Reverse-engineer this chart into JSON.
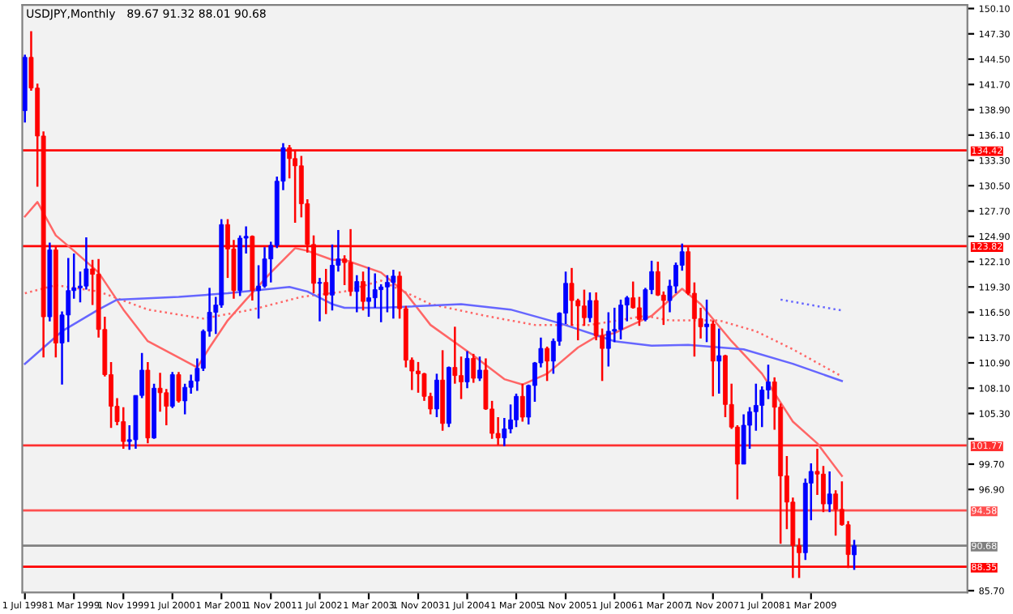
{
  "chart_data": {
    "type": "candlestick",
    "title": "USDJPY,Monthly",
    "subtitle": "89.67 91.32 88.01 90.68",
    "colors": [
      "#0000ff",
      "#ff0000",
      "#ff0000",
      "#ff0000",
      "#0000ff",
      "#ff0000",
      "#0000ff",
      "#0000ff",
      "#0000ff",
      "#0000ff",
      "#0000ff",
      "#ff0000",
      "#ff0000",
      "#ff0000",
      "#ff0000",
      "#ff0000",
      "#ff0000",
      "#0000ff",
      "#0000ff",
      "#0000ff",
      "#ff0000",
      "#0000ff",
      "#ff0000",
      "#ff0000",
      "#0000ff",
      "#ff0000",
      "#0000ff",
      "#0000ff",
      "#0000ff",
      "#0000ff",
      "#0000ff",
      "#0000ff",
      "#0000ff",
      "#ff0000",
      "#ff0000",
      "#0000ff",
      "#0000ff",
      "#ff0000",
      "#0000ff",
      "#0000ff",
      "#0000ff",
      "#0000ff",
      "#0000ff",
      "#ff0000",
      "#ff0000",
      "#ff0000",
      "#ff0000",
      "#ff0000",
      "#0000ff",
      "#ff0000",
      "#0000ff",
      "#0000ff",
      "#ff0000",
      "#ff0000",
      "#0000ff",
      "#ff0000",
      "#0000ff",
      "#0000ff",
      "#0000ff",
      "#0000ff",
      "#0000ff",
      "#ff0000",
      "#ff0000",
      "#ff0000",
      "#ff0000",
      "#ff0000",
      "#ff0000",
      "#0000ff",
      "#ff0000",
      "#0000ff",
      "#ff0000",
      "#ff0000",
      "#0000ff",
      "#ff0000",
      "#0000ff",
      "#ff0000",
      "#ff0000",
      "#ff0000",
      "#0000ff",
      "#0000ff",
      "#0000ff",
      "#ff0000",
      "#0000ff",
      "#0000ff",
      "#0000ff",
      "#ff0000",
      "#0000ff",
      "#0000ff",
      "#0000ff",
      "#ff0000",
      "#ff0000",
      "#ff0000",
      "#0000ff",
      "#ff0000",
      "#ff0000",
      "#0000ff",
      "#0000ff",
      "#0000ff",
      "#0000ff",
      "#ff0000",
      "#ff0000",
      "#0000ff",
      "#0000ff",
      "#ff0000",
      "#ff0000",
      "#0000ff",
      "#0000ff",
      "#0000ff",
      "#ff0000",
      "#ff0000",
      "#ff0000",
      "#0000ff",
      "#ff0000",
      "#0000ff",
      "#ff0000",
      "#ff0000",
      "#ff0000",
      "#0000ff",
      "#0000ff",
      "#0000ff",
      "#0000ff",
      "#0000ff",
      "#ff0000",
      "#ff0000",
      "#ff0000",
      "#ff0000",
      "#ff0000",
      "#0000ff",
      "#0000ff",
      "#ff0000",
      "#ff0000",
      "#0000ff",
      "#ff0000",
      "#ff0000",
      "#ff0000",
      "#0000ff"
    ],
    "x": [
      "1998-07",
      "1998-08",
      "1998-09",
      "1998-10",
      "1998-11",
      "1998-12",
      "1999-01",
      "1999-02",
      "1999-03",
      "1999-04",
      "1999-05",
      "1999-06",
      "1999-07",
      "1999-08",
      "1999-09",
      "1999-10",
      "1999-11",
      "1999-12",
      "2000-01",
      "2000-02",
      "2000-03",
      "2000-04",
      "2000-05",
      "2000-06",
      "2000-07",
      "2000-08",
      "2000-09",
      "2000-10",
      "2000-11",
      "2000-12",
      "2001-01",
      "2001-02",
      "2001-03",
      "2001-04",
      "2001-05",
      "2001-06",
      "2001-07",
      "2001-08",
      "2001-09",
      "2001-10",
      "2001-11",
      "2001-12",
      "2002-01",
      "2002-02",
      "2002-03",
      "2002-04",
      "2002-05",
      "2002-06",
      "2002-07",
      "2002-08",
      "2002-09",
      "2002-10",
      "2002-11",
      "2002-12",
      "2003-01",
      "2003-02",
      "2003-03",
      "2003-04",
      "2003-05",
      "2003-06",
      "2003-07",
      "2003-08",
      "2003-09",
      "2003-10",
      "2003-11",
      "2003-12",
      "2004-01",
      "2004-02",
      "2004-03",
      "2004-04",
      "2004-05",
      "2004-06",
      "2004-07",
      "2004-08",
      "2004-09",
      "2004-10",
      "2004-11",
      "2004-12",
      "2005-01",
      "2005-02",
      "2005-03",
      "2005-04",
      "2005-05",
      "2005-06",
      "2005-07",
      "2005-08",
      "2005-09",
      "2005-10",
      "2005-11",
      "2005-12",
      "2006-01",
      "2006-02",
      "2006-03",
      "2006-04",
      "2006-05",
      "2006-06",
      "2006-07",
      "2006-08",
      "2006-09",
      "2006-10",
      "2006-11",
      "2006-12",
      "2007-01",
      "2007-02",
      "2007-03",
      "2007-04",
      "2007-05",
      "2007-06",
      "2007-07",
      "2007-08",
      "2007-09",
      "2007-10",
      "2007-11",
      "2007-12",
      "2008-01",
      "2008-02",
      "2008-03",
      "2008-04",
      "2008-05",
      "2008-06",
      "2008-07",
      "2008-08",
      "2008-09",
      "2008-10",
      "2008-11",
      "2008-12",
      "2009-01",
      "2009-02",
      "2009-03",
      "2009-04",
      "2009-05",
      "2009-06",
      "2009-07",
      "2009-08",
      "2009-09",
      "2009-10"
    ],
    "ohlc": [
      [
        138.8,
        145.0,
        137.5,
        144.7
      ],
      [
        144.7,
        147.6,
        141.0,
        141.3
      ],
      [
        141.3,
        141.8,
        130.4,
        136.0
      ],
      [
        136.0,
        136.5,
        111.5,
        116.0
      ],
      [
        116.0,
        124.2,
        115.5,
        123.4
      ],
      [
        123.4,
        123.9,
        111.5,
        113.1
      ],
      [
        113.1,
        116.6,
        108.5,
        116.2
      ],
      [
        116.2,
        122.5,
        113.2,
        118.9
      ],
      [
        118.9,
        123.0,
        118.0,
        119.2
      ],
      [
        119.2,
        121.0,
        117.6,
        119.4
      ],
      [
        119.4,
        124.8,
        119.0,
        121.3
      ],
      [
        121.3,
        122.3,
        117.3,
        120.7
      ],
      [
        120.7,
        122.4,
        113.7,
        114.6
      ],
      [
        114.6,
        116.0,
        109.4,
        109.6
      ],
      [
        109.6,
        111.0,
        103.7,
        106.1
      ],
      [
        106.1,
        107.0,
        104.0,
        104.4
      ],
      [
        104.4,
        106.0,
        101.4,
        102.2
      ],
      [
        102.2,
        104.0,
        101.3,
        102.4
      ],
      [
        102.4,
        107.3,
        101.4,
        107.3
      ],
      [
        107.3,
        112.0,
        107.0,
        110.1
      ],
      [
        110.1,
        111.0,
        102.0,
        102.6
      ],
      [
        102.6,
        108.6,
        102.5,
        108.1
      ],
      [
        108.1,
        109.8,
        105.5,
        107.6
      ],
      [
        107.6,
        108.0,
        104.0,
        106.1
      ],
      [
        106.1,
        109.9,
        105.9,
        109.6
      ],
      [
        109.6,
        109.9,
        106.5,
        106.7
      ],
      [
        106.7,
        108.6,
        105.2,
        108.2
      ],
      [
        108.2,
        109.6,
        107.5,
        108.9
      ],
      [
        108.9,
        111.4,
        107.8,
        110.3
      ],
      [
        110.3,
        114.6,
        110.0,
        114.4
      ],
      [
        114.4,
        119.2,
        113.8,
        116.5
      ],
      [
        116.5,
        118.2,
        114.1,
        117.3
      ],
      [
        117.3,
        126.8,
        117.0,
        126.2
      ],
      [
        126.2,
        126.8,
        120.3,
        123.5
      ],
      [
        123.5,
        124.5,
        118.0,
        118.9
      ],
      [
        118.9,
        125.0,
        118.3,
        124.7
      ],
      [
        124.7,
        126.0,
        123.0,
        124.9
      ],
      [
        124.9,
        125.0,
        117.8,
        118.9
      ],
      [
        118.9,
        121.7,
        115.8,
        119.4
      ],
      [
        119.4,
        123.7,
        119.2,
        122.4
      ],
      [
        122.4,
        124.3,
        119.8,
        123.9
      ],
      [
        123.9,
        131.5,
        123.6,
        131.0
      ],
      [
        131.0,
        135.2,
        130.0,
        134.7
      ],
      [
        134.7,
        135.0,
        131.3,
        133.5
      ],
      [
        133.5,
        134.3,
        126.4,
        132.7
      ],
      [
        132.7,
        133.8,
        127.0,
        128.5
      ],
      [
        128.5,
        129.0,
        123.1,
        124.0
      ],
      [
        124.0,
        125.0,
        118.6,
        119.7
      ],
      [
        119.7,
        120.3,
        115.5,
        119.8
      ],
      [
        119.8,
        121.3,
        116.3,
        118.4
      ],
      [
        118.4,
        124.0,
        116.7,
        121.7
      ],
      [
        121.7,
        125.6,
        121.0,
        122.4
      ],
      [
        122.4,
        122.8,
        119.5,
        122.0
      ],
      [
        122.0,
        125.7,
        118.3,
        118.8
      ],
      [
        118.8,
        120.6,
        116.5,
        119.9
      ],
      [
        119.9,
        121.0,
        116.7,
        117.7
      ],
      [
        117.7,
        121.5,
        116.0,
        118.1
      ],
      [
        118.1,
        120.8,
        117.0,
        119.0
      ],
      [
        119.0,
        119.6,
        115.4,
        119.3
      ],
      [
        119.3,
        120.6,
        116.5,
        119.8
      ],
      [
        119.8,
        121.2,
        115.8,
        120.5
      ],
      [
        120.5,
        121.0,
        115.8,
        116.9
      ],
      [
        116.9,
        117.2,
        110.4,
        111.2
      ],
      [
        111.2,
        111.5,
        107.9,
        110.0
      ],
      [
        110.0,
        111.0,
        107.6,
        109.7
      ],
      [
        109.7,
        109.8,
        106.7,
        107.2
      ],
      [
        107.2,
        107.6,
        105.2,
        105.8
      ],
      [
        105.8,
        109.7,
        104.9,
        109.0
      ],
      [
        109.0,
        112.3,
        103.4,
        104.2
      ],
      [
        104.2,
        110.5,
        103.8,
        110.4
      ],
      [
        110.4,
        114.9,
        108.6,
        109.5
      ],
      [
        109.5,
        111.6,
        106.9,
        108.8
      ],
      [
        108.8,
        112.2,
        108.1,
        111.4
      ],
      [
        111.4,
        111.9,
        108.7,
        109.2
      ],
      [
        109.2,
        111.6,
        108.9,
        110.1
      ],
      [
        110.1,
        111.4,
        105.7,
        105.8
      ],
      [
        105.8,
        106.7,
        102.5,
        103.1
      ],
      [
        103.1,
        104.9,
        101.8,
        102.6
      ],
      [
        102.6,
        104.8,
        101.7,
        103.6
      ],
      [
        103.6,
        106.3,
        103.1,
        104.6
      ],
      [
        104.6,
        107.5,
        103.8,
        107.2
      ],
      [
        107.2,
        108.6,
        104.4,
        104.9
      ],
      [
        104.9,
        108.5,
        104.1,
        108.4
      ],
      [
        108.4,
        111.0,
        106.6,
        110.9
      ],
      [
        110.9,
        113.7,
        110.4,
        112.5
      ],
      [
        112.5,
        112.7,
        108.9,
        111.1
      ],
      [
        111.1,
        113.6,
        109.7,
        113.3
      ],
      [
        113.3,
        116.5,
        112.8,
        116.4
      ],
      [
        116.4,
        121.0,
        115.2,
        119.7
      ],
      [
        119.7,
        121.4,
        115.0,
        117.8
      ],
      [
        117.8,
        118.0,
        113.4,
        117.2
      ],
      [
        117.2,
        119.0,
        115.0,
        115.9
      ],
      [
        115.9,
        118.7,
        115.4,
        117.8
      ],
      [
        117.8,
        118.7,
        113.4,
        113.9
      ],
      [
        113.9,
        114.7,
        108.9,
        112.5
      ],
      [
        112.5,
        116.5,
        110.5,
        114.4
      ],
      [
        114.4,
        117.0,
        113.2,
        114.6
      ],
      [
        114.6,
        117.9,
        113.5,
        117.3
      ],
      [
        117.3,
        118.3,
        115.5,
        118.1
      ],
      [
        118.1,
        119.9,
        116.9,
        117.0
      ],
      [
        117.0,
        118.2,
        115.0,
        115.7
      ],
      [
        115.7,
        119.2,
        115.5,
        119.0
      ],
      [
        119.0,
        122.2,
        118.5,
        121.0
      ],
      [
        121.0,
        122.1,
        118.3,
        118.4
      ],
      [
        118.4,
        118.8,
        115.1,
        117.8
      ],
      [
        117.8,
        120.1,
        116.5,
        119.4
      ],
      [
        119.4,
        122.0,
        118.6,
        121.7
      ],
      [
        121.7,
        124.1,
        121.1,
        123.2
      ],
      [
        123.2,
        123.7,
        118.4,
        118.6
      ],
      [
        118.6,
        119.8,
        111.6,
        115.8
      ],
      [
        115.8,
        117.0,
        113.6,
        114.9
      ],
      [
        114.9,
        117.9,
        113.2,
        115.2
      ],
      [
        115.2,
        115.6,
        107.2,
        111.1
      ],
      [
        111.1,
        114.7,
        107.5,
        111.7
      ],
      [
        111.7,
        111.8,
        104.9,
        106.3
      ],
      [
        106.3,
        108.6,
        103.6,
        103.8
      ],
      [
        103.8,
        104.0,
        95.8,
        99.7
      ],
      [
        99.7,
        105.2,
        99.7,
        104.0
      ],
      [
        104.0,
        106.0,
        101.4,
        105.5
      ],
      [
        105.5,
        108.6,
        103.4,
        106.2
      ],
      [
        106.2,
        108.3,
        103.8,
        107.9
      ],
      [
        107.9,
        110.7,
        106.9,
        108.8
      ],
      [
        108.8,
        109.3,
        103.5,
        106.0
      ],
      [
        106.0,
        106.4,
        90.9,
        98.4
      ],
      [
        98.4,
        100.6,
        92.5,
        95.5
      ],
      [
        95.5,
        96.0,
        87.1,
        90.7
      ],
      [
        90.7,
        91.5,
        87.1,
        89.9
      ],
      [
        89.9,
        98.1,
        89.1,
        97.6
      ],
      [
        97.6,
        99.8,
        93.5,
        98.9
      ],
      [
        98.9,
        101.4,
        96.3,
        98.6
      ],
      [
        98.6,
        99.5,
        94.4,
        95.3
      ],
      [
        95.3,
        98.9,
        94.4,
        96.4
      ],
      [
        96.4,
        96.8,
        91.8,
        94.7
      ],
      [
        94.7,
        97.8,
        92.9,
        93.0
      ],
      [
        93.0,
        93.4,
        88.2,
        89.7
      ],
      [
        89.67,
        91.32,
        88.01,
        90.68
      ]
    ],
    "series": [
      {
        "type": "line",
        "color": "#ff6666",
        "line_style": "solid",
        "x": [
          "1998-07",
          "1998-09",
          "1998-12",
          "1999-03",
          "1999-07",
          "1999-11",
          "2000-03",
          "2000-08",
          "2000-11",
          "2001-01",
          "2001-04",
          "2001-07",
          "2001-11",
          "2002-03",
          "2002-05",
          "2002-09",
          "2002-11",
          "2003-05",
          "2003-09",
          "2004-01",
          "2004-08",
          "2005-01",
          "2005-04",
          "2005-08",
          "2006-01",
          "2006-04",
          "2006-07",
          "2007-01",
          "2007-06",
          "2007-09",
          "2008-02",
          "2008-07",
          "2008-12",
          "2009-04",
          "2009-08"
        ],
        "values": [
          127.1,
          128.7,
          125.0,
          123.3,
          120.9,
          116.8,
          113.3,
          111.5,
          110.4,
          112.6,
          115.6,
          117.9,
          120.9,
          123.6,
          123.3,
          122.3,
          122.3,
          120.9,
          118.6,
          115.1,
          111.7,
          109.1,
          108.5,
          109.7,
          112.6,
          113.8,
          114.2,
          116.1,
          119.1,
          117.4,
          113.3,
          109.7,
          104.4,
          102.0,
          98.4
        ]
      },
      {
        "type": "line",
        "color": "#ff6666",
        "line_style": "dotted",
        "x": [
          "1998-07",
          "1998-12",
          "1999-07",
          "2000-03",
          "2000-12",
          "2001-08",
          "2002-04",
          "2002-11",
          "2003-05",
          "2004-01",
          "2004-10",
          "2005-06",
          "2006-03",
          "2006-12",
          "2007-04",
          "2007-12",
          "2008-06",
          "2008-12",
          "2009-08"
        ],
        "values": [
          118.6,
          119.5,
          118.8,
          116.8,
          115.8,
          116.8,
          118.2,
          118.8,
          120.0,
          117.4,
          116.1,
          115.1,
          115.1,
          116.1,
          115.6,
          115.6,
          114.4,
          112.4,
          109.4
        ]
      },
      {
        "type": "line",
        "color": "#6666ff",
        "line_style": "solid",
        "x": [
          "1998-07",
          "1999-01",
          "1999-07",
          "1999-10",
          "2000-08",
          "2001-04",
          "2002-02",
          "2002-05",
          "2002-09",
          "2002-11",
          "2003-05",
          "2004-06",
          "2005-02",
          "2005-10",
          "2006-07",
          "2007-01",
          "2007-07",
          "2008-04",
          "2008-12",
          "2009-08"
        ],
        "values": [
          110.8,
          114.4,
          116.8,
          117.9,
          118.2,
          118.6,
          119.3,
          118.8,
          117.4,
          117.0,
          117.0,
          117.4,
          116.8,
          115.3,
          113.3,
          112.8,
          112.9,
          112.4,
          110.8,
          108.9
        ]
      },
      {
        "type": "line",
        "color": "#6666ff",
        "line_style": "dotted",
        "x": [
          "2008-10",
          "2009-08"
        ],
        "values": [
          117.9,
          116.7
        ]
      }
    ],
    "ref_lines": [
      {
        "axis": "y",
        "value": 134.42,
        "label": "134.42",
        "color": "#ff0000"
      },
      {
        "axis": "y",
        "value": 123.82,
        "label": "123.82",
        "color": "#ff0000"
      },
      {
        "axis": "y",
        "value": 101.77,
        "label": "101.77",
        "color": "#ff3030"
      },
      {
        "axis": "y",
        "value": 94.58,
        "label": "94.58",
        "color": "#ff5050"
      },
      {
        "axis": "y",
        "value": 90.68,
        "label": "90.68",
        "color": "#808080"
      },
      {
        "axis": "y",
        "value": 88.35,
        "label": "88.35",
        "color": "#ff0000"
      }
    ],
    "xlim": [
      "1998-06-18",
      "2011-04-15"
    ],
    "ylim": [
      85.5,
      150.5
    ],
    "xticks": [
      {
        "value": "1998-07-01",
        "label": "1 Jul 1998"
      },
      {
        "value": "1999-03-01",
        "label": "1 Mar 1999"
      },
      {
        "value": "1999-11-01",
        "label": "1 Nov 1999"
      },
      {
        "value": "2000-07-01",
        "label": "1 Jul 2000"
      },
      {
        "value": "2001-03-01",
        "label": "1 Mar 2001"
      },
      {
        "value": "2001-11-01",
        "label": "1 Nov 2001"
      },
      {
        "value": "2002-07-01",
        "label": "1 Jul 2002"
      },
      {
        "value": "2003-03-01",
        "label": "1 Mar 2003"
      },
      {
        "value": "2003-11-01",
        "label": "1 Nov 2003"
      },
      {
        "value": "2004-07-01",
        "label": "1 Jul 2004"
      },
      {
        "value": "2005-03-01",
        "label": "1 Mar 2005"
      },
      {
        "value": "2005-11-01",
        "label": "1 Nov 2005"
      },
      {
        "value": "2006-07-01",
        "label": "1 Jul 2006"
      },
      {
        "value": "2007-03-01",
        "label": "1 Mar 2007"
      },
      {
        "value": "2007-11-01",
        "label": "1 Nov 2007"
      },
      {
        "value": "2008-07-01",
        "label": "1 Jul 2008"
      },
      {
        "value": "2009-03-01",
        "label": "1 Mar 2009"
      }
    ],
    "yticks": [
      {
        "value": 150.1,
        "label": "150.10"
      },
      {
        "value": 147.3,
        "label": "147.30"
      },
      {
        "value": 144.5,
        "label": "144.50"
      },
      {
        "value": 141.7,
        "label": "141.70"
      },
      {
        "value": 138.9,
        "label": "138.90"
      },
      {
        "value": 136.1,
        "label": "136.10"
      },
      {
        "value": 133.3,
        "label": "133.30"
      },
      {
        "value": 130.5,
        "label": "130.50"
      },
      {
        "value": 127.7,
        "label": "127.70"
      },
      {
        "value": 124.9,
        "label": "124.90"
      },
      {
        "value": 122.1,
        "label": "122.10"
      },
      {
        "value": 119.3,
        "label": "119.30"
      },
      {
        "value": 116.5,
        "label": "116.50"
      },
      {
        "value": 113.7,
        "label": "113.70"
      },
      {
        "value": 110.9,
        "label": "110.90"
      },
      {
        "value": 108.1,
        "label": "108.10"
      },
      {
        "value": 105.3,
        "label": "105.30"
      },
      {
        "value": 102.5,
        "label": null
      },
      {
        "value": 99.7,
        "label": "99.70"
      },
      {
        "value": 96.9,
        "label": "96.90"
      },
      {
        "value": 85.7,
        "label": "85.70"
      }
    ],
    "grid": false,
    "legend": false
  }
}
